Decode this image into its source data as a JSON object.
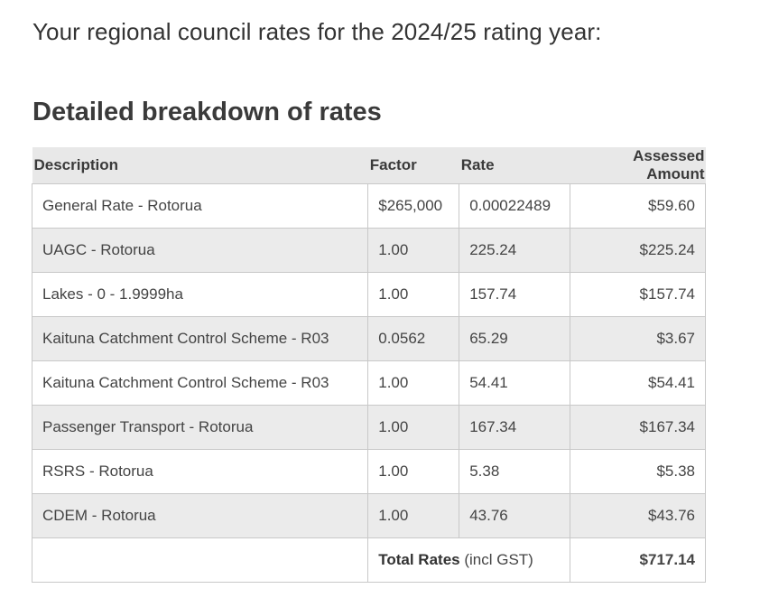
{
  "intro": "Your regional council rates for the 2024/25 rating year:",
  "heading": "Detailed breakdown of rates",
  "table": {
    "headers": {
      "description": "Description",
      "factor": "Factor",
      "rate": "Rate",
      "amount": "Assessed Amount"
    },
    "rows": [
      {
        "description": "General Rate - Rotorua",
        "factor": "$265,000",
        "rate": "0.00022489",
        "amount": "$59.60"
      },
      {
        "description": "UAGC - Rotorua",
        "factor": "1.00",
        "rate": "225.24",
        "amount": "$225.24"
      },
      {
        "description": "Lakes - 0 - 1.9999ha",
        "factor": "1.00",
        "rate": "157.74",
        "amount": "$157.74"
      },
      {
        "description": "Kaituna Catchment Control Scheme - R03",
        "factor": "0.0562",
        "rate": "65.29",
        "amount": "$3.67"
      },
      {
        "description": "Kaituna Catchment Control Scheme - R03",
        "factor": "1.00",
        "rate": "54.41",
        "amount": "$54.41"
      },
      {
        "description": "Passenger Transport - Rotorua",
        "factor": "1.00",
        "rate": "167.34",
        "amount": "$167.34"
      },
      {
        "description": "RSRS - Rotorua",
        "factor": "1.00",
        "rate": "5.38",
        "amount": "$5.38"
      },
      {
        "description": "CDEM - Rotorua",
        "factor": "1.00",
        "rate": "43.76",
        "amount": "$43.76"
      }
    ],
    "total": {
      "label_bold": "Total Rates",
      "label_suffix": " (incl GST)",
      "amount": "$717.14"
    }
  }
}
